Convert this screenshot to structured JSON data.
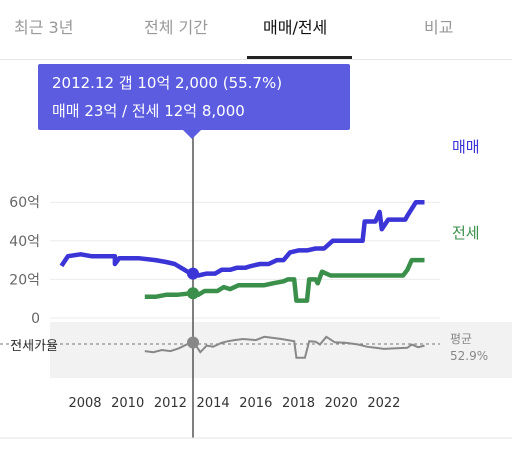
{
  "tabs": [
    {
      "label": "최근 3년",
      "active": false
    },
    {
      "label": "전체 기간",
      "active": false
    },
    {
      "label": "매매/전세",
      "active": true
    },
    {
      "label": "비교",
      "active": false
    }
  ],
  "tooltip": {
    "line1": "2012.12  갭 10억 2,000 (55.7%)",
    "line2": "매매 23억 / 전세 12억 8,000"
  },
  "colors": {
    "sale": "#3b34d6",
    "jeonse": "#3a8f4a",
    "ratio": "#888888",
    "tooltip": "#5b5ce0"
  },
  "chart_data": [
    {
      "type": "line",
      "title": "",
      "x_ticks": [
        "2008",
        "2010",
        "2012",
        "2014",
        "2016",
        "2018",
        "2020",
        "2022"
      ],
      "y_ticks": [
        "0",
        "20억",
        "40억",
        "60억"
      ],
      "ylim": [
        0,
        65
      ],
      "xlim": [
        2006.8,
        2024.4
      ],
      "series": [
        {
          "name": "매매",
          "points": [
            [
              2006.9,
              27
            ],
            [
              2007.2,
              32
            ],
            [
              2007.8,
              33
            ],
            [
              2008.3,
              32
            ],
            [
              2009.0,
              32
            ],
            [
              2009.4,
              32
            ],
            [
              2009.4,
              28
            ],
            [
              2009.6,
              31
            ],
            [
              2010.5,
              31
            ],
            [
              2011.3,
              30
            ],
            [
              2011.8,
              29
            ],
            [
              2012.2,
              28
            ],
            [
              2012.5,
              26
            ],
            [
              2012.95,
              23
            ],
            [
              2013.3,
              22
            ],
            [
              2013.7,
              23
            ],
            [
              2014.1,
              23
            ],
            [
              2014.4,
              25
            ],
            [
              2014.8,
              25
            ],
            [
              2015.1,
              26
            ],
            [
              2015.5,
              26
            ],
            [
              2015.8,
              27
            ],
            [
              2016.2,
              28
            ],
            [
              2016.6,
              28
            ],
            [
              2017.0,
              30
            ],
            [
              2017.3,
              30
            ],
            [
              2017.6,
              34
            ],
            [
              2018.0,
              35
            ],
            [
              2018.4,
              35
            ],
            [
              2018.8,
              36
            ],
            [
              2019.2,
              36
            ],
            [
              2019.6,
              40
            ],
            [
              2020.0,
              40
            ],
            [
              2020.6,
              40
            ],
            [
              2021.0,
              40
            ],
            [
              2021.1,
              50
            ],
            [
              2021.6,
              50
            ],
            [
              2021.8,
              55
            ],
            [
              2021.9,
              46
            ],
            [
              2022.2,
              51
            ],
            [
              2022.7,
              51
            ],
            [
              2023.0,
              51
            ],
            [
              2023.1,
              53
            ],
            [
              2023.5,
              60
            ],
            [
              2023.9,
              60
            ]
          ]
        },
        {
          "name": "전세",
          "points": [
            [
              2010.8,
              11
            ],
            [
              2011.3,
              11
            ],
            [
              2011.8,
              12
            ],
            [
              2012.3,
              12
            ],
            [
              2012.95,
              12.8
            ],
            [
              2013.3,
              12
            ],
            [
              2013.6,
              14
            ],
            [
              2014.2,
              14
            ],
            [
              2014.5,
              16
            ],
            [
              2014.8,
              15
            ],
            [
              2015.2,
              17
            ],
            [
              2015.8,
              17
            ],
            [
              2016.4,
              17
            ],
            [
              2016.8,
              18
            ],
            [
              2017.3,
              19
            ],
            [
              2017.5,
              20
            ],
            [
              2017.8,
              20
            ],
            [
              2017.9,
              9
            ],
            [
              2018.2,
              9
            ],
            [
              2018.4,
              9
            ],
            [
              2018.5,
              20
            ],
            [
              2018.8,
              20
            ],
            [
              2018.9,
              18
            ],
            [
              2019.1,
              24
            ],
            [
              2019.5,
              22
            ],
            [
              2020.0,
              22
            ],
            [
              2020.6,
              22
            ],
            [
              2021.0,
              22
            ],
            [
              2021.5,
              22
            ],
            [
              2022.0,
              22
            ],
            [
              2022.7,
              22
            ],
            [
              2022.9,
              22
            ],
            [
              2023.1,
              25
            ],
            [
              2023.3,
              30
            ],
            [
              2023.9,
              30
            ]
          ]
        }
      ]
    },
    {
      "type": "line",
      "title": "",
      "ylabel": "전세가율",
      "average_label": "평균",
      "average_value": "52.9%",
      "series": [
        {
          "name": "전세가율",
          "points": [
            [
              2010.8,
              40
            ],
            [
              2011.2,
              38
            ],
            [
              2011.6,
              42
            ],
            [
              2012.0,
              40
            ],
            [
              2012.4,
              45
            ],
            [
              2012.95,
              55.7
            ],
            [
              2013.2,
              50
            ],
            [
              2013.4,
              38
            ],
            [
              2013.7,
              50
            ],
            [
              2014.0,
              48
            ],
            [
              2014.4,
              55
            ],
            [
              2014.7,
              58
            ],
            [
              2015.0,
              60
            ],
            [
              2015.4,
              62
            ],
            [
              2016.0,
              60
            ],
            [
              2016.4,
              66
            ],
            [
              2016.8,
              64
            ],
            [
              2017.2,
              62
            ],
            [
              2017.5,
              60
            ],
            [
              2017.8,
              58
            ],
            [
              2017.9,
              28
            ],
            [
              2018.3,
              28
            ],
            [
              2018.5,
              58
            ],
            [
              2018.8,
              57
            ],
            [
              2019.0,
              52
            ],
            [
              2019.3,
              66
            ],
            [
              2019.7,
              56
            ],
            [
              2020.2,
              55
            ],
            [
              2020.8,
              52
            ],
            [
              2021.2,
              48
            ],
            [
              2021.6,
              46
            ],
            [
              2022.0,
              44
            ],
            [
              2022.6,
              45
            ],
            [
              2023.1,
              46
            ],
            [
              2023.3,
              52
            ],
            [
              2023.6,
              47
            ],
            [
              2023.9,
              50
            ]
          ]
        }
      ]
    }
  ]
}
